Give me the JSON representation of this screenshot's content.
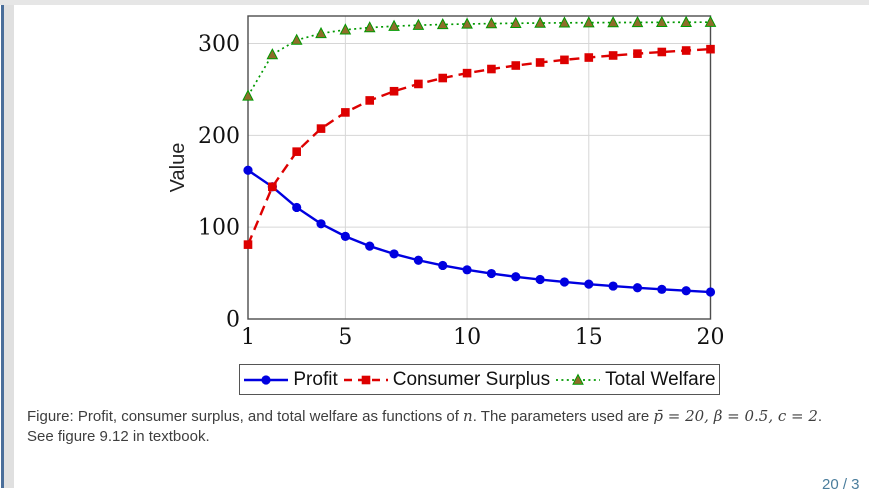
{
  "window": {
    "page_indicator": "20 / 3"
  },
  "slide": {
    "caption": {
      "segments": [
        {
          "text": "Figure: Profit, consumer surplus, and total welfare as functions of ",
          "math": false
        },
        {
          "text": "n",
          "math": true
        },
        {
          "text": ". The parameters used are ",
          "math": false
        },
        {
          "text": "p̄ = 20, β = 0.5, c = 2",
          "math": true
        },
        {
          "text": ". See figure 9.12 in textbook.",
          "math": false
        }
      ]
    }
  },
  "chart_data": {
    "type": "line",
    "title": "",
    "xlabel": "",
    "ylabel": "Value",
    "xlim": [
      1,
      20
    ],
    "ylim": [
      0,
      330
    ],
    "xticks": [
      1,
      5,
      10,
      15,
      20
    ],
    "yticks": [
      0,
      100,
      200,
      300
    ],
    "grid": true,
    "grid_color": "#d6d6d6",
    "axis_color": "#4d4d4d",
    "legend_position": "below",
    "x": [
      1,
      2,
      3,
      4,
      5,
      6,
      7,
      8,
      9,
      10,
      11,
      12,
      13,
      14,
      15,
      16,
      17,
      18,
      19,
      20
    ],
    "series": [
      {
        "name": "Profit",
        "color": "#0000e0",
        "line": "solid",
        "marker": "circle",
        "marker_fill": "#0000e0",
        "values": [
          162,
          144,
          121.5,
          103.68,
          90,
          79.35,
          70.88,
          64,
          58.32,
          53.55,
          49.5,
          46.01,
          42.98,
          40.32,
          37.97,
          35.87,
          34,
          32.31,
          30.78,
          29.39
        ]
      },
      {
        "name": "Consumer Surplus",
        "color": "#dd0000",
        "line": "dashed",
        "marker": "square",
        "marker_fill": "#dd0000",
        "values": [
          81,
          144,
          182.25,
          207.36,
          225,
          238.04,
          248.06,
          256,
          262.44,
          267.77,
          272.25,
          276.07,
          279.37,
          282.24,
          284.77,
          287.01,
          289,
          290.81,
          292.41,
          293.88
        ]
      },
      {
        "name": "Total Welfare",
        "color": "#009900",
        "line": "dotted",
        "marker": "triangle",
        "marker_fill": "#8f6d2a",
        "values": [
          243,
          288,
          303.75,
          311.04,
          315,
          317.39,
          318.94,
          320,
          320.76,
          321.32,
          321.75,
          322.08,
          322.35,
          322.56,
          322.73,
          322.88,
          323,
          323.12,
          323.19,
          323.27
        ]
      }
    ]
  }
}
